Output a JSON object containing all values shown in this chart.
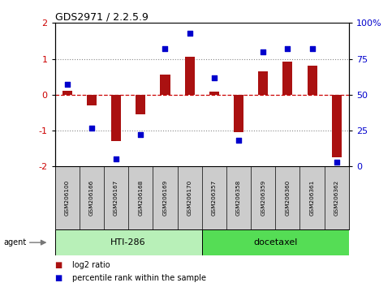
{
  "title": "GDS2971 / 2.2.5.9",
  "samples": [
    "GSM206100",
    "GSM206166",
    "GSM206167",
    "GSM206168",
    "GSM206169",
    "GSM206170",
    "GSM206357",
    "GSM206358",
    "GSM206359",
    "GSM206360",
    "GSM206361",
    "GSM206362"
  ],
  "log2_ratio": [
    0.12,
    -0.3,
    -1.3,
    -0.55,
    0.55,
    1.05,
    0.08,
    -1.05,
    0.65,
    0.92,
    0.82,
    -1.75
  ],
  "percentile_rank": [
    57,
    27,
    5,
    22,
    82,
    93,
    62,
    18,
    80,
    82,
    82,
    3
  ],
  "groups": [
    {
      "label": "HTI-286",
      "start": 0,
      "end": 5,
      "color": "#b8f0b8"
    },
    {
      "label": "docetaxel",
      "start": 6,
      "end": 11,
      "color": "#55dd55"
    }
  ],
  "bar_color": "#aa1111",
  "dot_color": "#0000cc",
  "ylim_left": [
    -2,
    2
  ],
  "ylim_right": [
    0,
    100
  ],
  "yticks_left": [
    -2,
    -1,
    0,
    1,
    2
  ],
  "yticks_right": [
    0,
    25,
    50,
    75,
    100
  ],
  "yticklabels_right": [
    "0",
    "25",
    "50",
    "75",
    "100%"
  ],
  "yticklabels_left": [
    "-2",
    "-1",
    "0",
    "1",
    "2"
  ],
  "zero_line_color": "#cc0000",
  "grid_color": "#000000",
  "agent_label": "agent",
  "legend_items": [
    {
      "label": "log2 ratio",
      "color": "#aa1111"
    },
    {
      "label": "percentile rank within the sample",
      "color": "#0000cc"
    }
  ]
}
